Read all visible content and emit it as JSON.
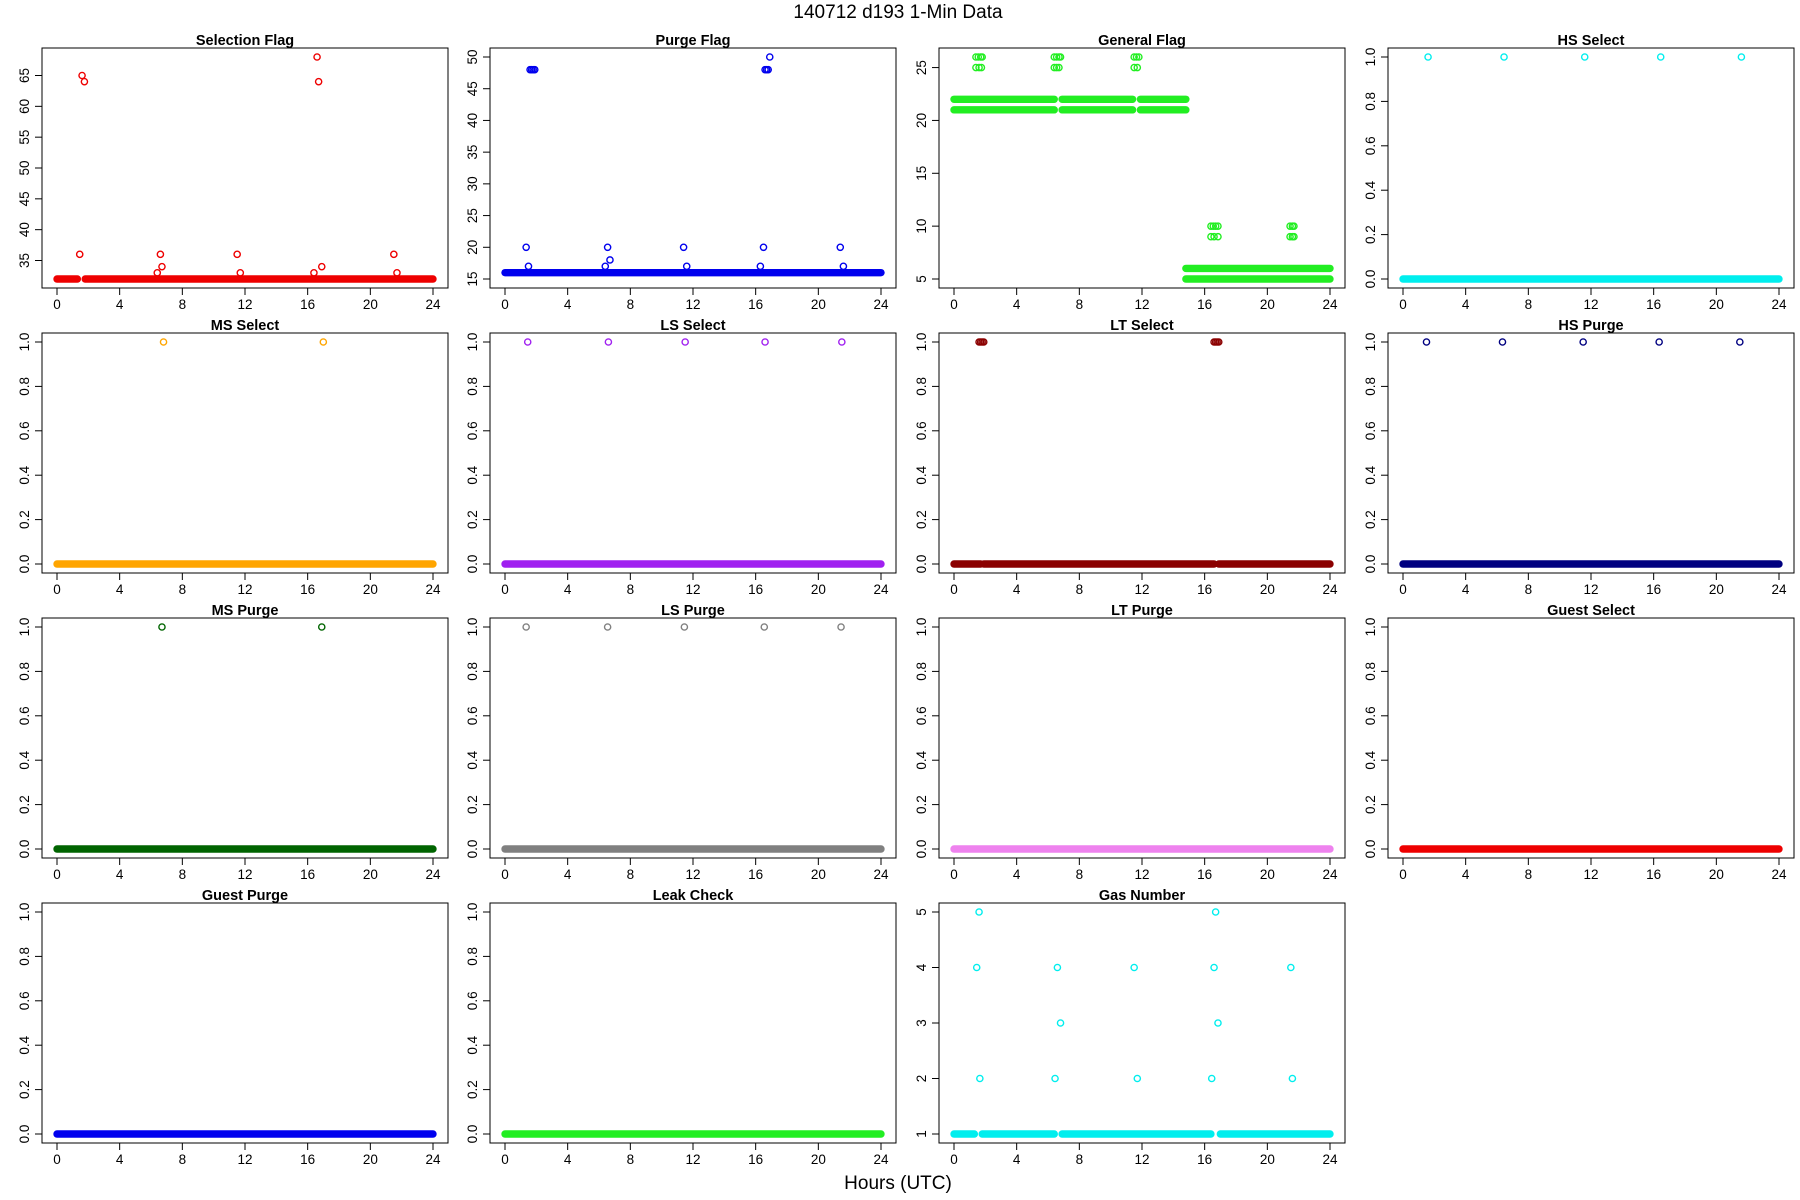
{
  "figure": {
    "title": "140712   d193   1-Min Data",
    "xlabel": "Hours (UTC)"
  },
  "chart_data": [
    {
      "type": "scatter",
      "title": "Selection Flag",
      "color": "#ee0000",
      "xlim": [
        0,
        24
      ],
      "ylim": [
        32,
        68
      ],
      "xticks": [
        0,
        4,
        8,
        12,
        16,
        20,
        24
      ],
      "yticks": [
        35,
        40,
        45,
        50,
        55,
        60,
        65
      ],
      "base_y": 32,
      "base_breaks": [
        [
          0,
          1.3
        ],
        [
          1.8,
          24
        ]
      ],
      "points": [
        [
          1.45,
          36
        ],
        [
          1.6,
          65
        ],
        [
          1.75,
          64
        ],
        [
          6.4,
          33
        ],
        [
          6.6,
          36
        ],
        [
          6.7,
          34
        ],
        [
          11.5,
          36
        ],
        [
          11.7,
          33
        ],
        [
          16.4,
          33
        ],
        [
          16.6,
          68
        ],
        [
          16.7,
          64
        ],
        [
          16.9,
          34
        ],
        [
          21.5,
          36
        ],
        [
          21.7,
          33
        ]
      ]
    },
    {
      "type": "scatter",
      "title": "Purge Flag",
      "color": "#0000ee",
      "xlim": [
        0,
        24
      ],
      "ylim": [
        15,
        50
      ],
      "xticks": [
        0,
        4,
        8,
        12,
        16,
        20,
        24
      ],
      "yticks": [
        15,
        20,
        25,
        30,
        35,
        40,
        45,
        50
      ],
      "base_y": 16,
      "base_breaks": [
        [
          0,
          24
        ]
      ],
      "points": [
        [
          1.35,
          20
        ],
        [
          1.5,
          17
        ],
        [
          1.6,
          48
        ],
        [
          1.7,
          48
        ],
        [
          1.8,
          48
        ],
        [
          1.9,
          48
        ],
        [
          6.4,
          17
        ],
        [
          6.55,
          20
        ],
        [
          6.7,
          18
        ],
        [
          11.4,
          20
        ],
        [
          11.6,
          17
        ],
        [
          16.3,
          17
        ],
        [
          16.5,
          20
        ],
        [
          16.6,
          48
        ],
        [
          16.7,
          48
        ],
        [
          16.8,
          48
        ],
        [
          16.9,
          50
        ],
        [
          21.4,
          20
        ],
        [
          21.6,
          17
        ]
      ]
    },
    {
      "type": "scatter",
      "title": "General Flag",
      "color": "#22ee22",
      "xlim": [
        0,
        24
      ],
      "ylim": [
        5,
        26
      ],
      "xticks": [
        0,
        4,
        8,
        12,
        16,
        20,
        24
      ],
      "yticks": [
        5,
        10,
        15,
        20,
        25
      ],
      "base_y": 22,
      "base_breaks": [
        [
          0,
          6.4
        ],
        [
          6.9,
          11.4
        ],
        [
          11.9,
          14.8
        ]
      ],
      "extra_bands": [
        {
          "y": 21,
          "breaks": [
            [
              0,
              6.4
            ],
            [
              6.9,
              11.4
            ],
            [
              11.9,
              14.8
            ]
          ]
        },
        {
          "y": 6,
          "breaks": [
            [
              14.8,
              24
            ]
          ]
        },
        {
          "y": 5,
          "breaks": [
            [
              14.8,
              24
            ]
          ]
        }
      ],
      "points": [
        [
          1.4,
          26
        ],
        [
          1.55,
          26
        ],
        [
          1.7,
          26
        ],
        [
          1.8,
          26
        ],
        [
          1.4,
          25
        ],
        [
          1.6,
          25
        ],
        [
          1.75,
          25
        ],
        [
          6.4,
          26
        ],
        [
          6.55,
          26
        ],
        [
          6.7,
          26
        ],
        [
          6.8,
          26
        ],
        [
          6.4,
          25
        ],
        [
          6.55,
          25
        ],
        [
          6.7,
          25
        ],
        [
          11.5,
          26
        ],
        [
          11.65,
          26
        ],
        [
          11.8,
          26
        ],
        [
          11.5,
          25
        ],
        [
          11.7,
          25
        ],
        [
          16.4,
          10
        ],
        [
          16.55,
          10
        ],
        [
          16.7,
          10
        ],
        [
          16.85,
          10
        ],
        [
          16.4,
          9
        ],
        [
          16.6,
          9
        ],
        [
          16.85,
          9
        ],
        [
          21.45,
          10
        ],
        [
          21.6,
          10
        ],
        [
          21.7,
          10
        ],
        [
          21.45,
          9
        ],
        [
          21.6,
          9
        ],
        [
          21.7,
          9
        ]
      ]
    },
    {
      "type": "scatter",
      "title": "HS Select",
      "color": "#00eeee",
      "xlim": [
        0,
        24
      ],
      "ylim": [
        0,
        1
      ],
      "xticks": [
        0,
        4,
        8,
        12,
        16,
        20,
        24
      ],
      "yticks": [
        0.0,
        0.2,
        0.4,
        0.6,
        0.8,
        1.0
      ],
      "base_y": 0,
      "base_breaks": [
        [
          0,
          24
        ]
      ],
      "points": [
        [
          1.6,
          1
        ],
        [
          6.45,
          1
        ],
        [
          11.6,
          1
        ],
        [
          16.45,
          1
        ],
        [
          21.6,
          1
        ]
      ]
    },
    {
      "type": "scatter",
      "title": "MS Select",
      "color": "#ffa500",
      "xlim": [
        0,
        24
      ],
      "ylim": [
        0,
        1
      ],
      "xticks": [
        0,
        4,
        8,
        12,
        16,
        20,
        24
      ],
      "yticks": [
        0.0,
        0.2,
        0.4,
        0.6,
        0.8,
        1.0
      ],
      "base_y": 0,
      "base_breaks": [
        [
          0,
          24
        ]
      ],
      "points": [
        [
          6.8,
          1
        ],
        [
          17.0,
          1
        ]
      ]
    },
    {
      "type": "scatter",
      "title": "LS Select",
      "color": "#a020f0",
      "xlim": [
        0,
        24
      ],
      "ylim": [
        0,
        1
      ],
      "xticks": [
        0,
        4,
        8,
        12,
        16,
        20,
        24
      ],
      "yticks": [
        0.0,
        0.2,
        0.4,
        0.6,
        0.8,
        1.0
      ],
      "base_y": 0,
      "base_breaks": [
        [
          0,
          24
        ]
      ],
      "points": [
        [
          1.45,
          1
        ],
        [
          6.6,
          1
        ],
        [
          11.5,
          1
        ],
        [
          16.6,
          1
        ],
        [
          21.5,
          1
        ]
      ]
    },
    {
      "type": "scatter",
      "title": "LT Select",
      "color": "#8b0000",
      "xlim": [
        0,
        24
      ],
      "ylim": [
        0,
        1
      ],
      "xticks": [
        0,
        4,
        8,
        12,
        16,
        20,
        24
      ],
      "yticks": [
        0.0,
        0.2,
        0.4,
        0.6,
        0.8,
        1.0
      ],
      "base_y": 0,
      "base_breaks": [
        [
          0,
          1.7
        ],
        [
          1.9,
          16.6
        ],
        [
          16.9,
          24
        ]
      ],
      "points": [
        [
          1.6,
          1
        ],
        [
          1.7,
          1
        ],
        [
          1.8,
          1
        ],
        [
          1.9,
          1
        ],
        [
          16.6,
          1
        ],
        [
          16.7,
          1
        ],
        [
          16.8,
          1
        ],
        [
          16.9,
          1
        ]
      ]
    },
    {
      "type": "scatter",
      "title": "HS Purge",
      "color": "#000080",
      "xlim": [
        0,
        24
      ],
      "ylim": [
        0,
        1
      ],
      "xticks": [
        0,
        4,
        8,
        12,
        16,
        20,
        24
      ],
      "yticks": [
        0.0,
        0.2,
        0.4,
        0.6,
        0.8,
        1.0
      ],
      "base_y": 0,
      "base_breaks": [
        [
          0,
          24
        ]
      ],
      "points": [
        [
          1.5,
          1
        ],
        [
          6.35,
          1
        ],
        [
          11.5,
          1
        ],
        [
          16.35,
          1
        ],
        [
          21.5,
          1
        ]
      ]
    },
    {
      "type": "scatter",
      "title": "MS Purge",
      "color": "#006400",
      "xlim": [
        0,
        24
      ],
      "ylim": [
        0,
        1
      ],
      "xticks": [
        0,
        4,
        8,
        12,
        16,
        20,
        24
      ],
      "yticks": [
        0.0,
        0.2,
        0.4,
        0.6,
        0.8,
        1.0
      ],
      "base_y": 0,
      "base_breaks": [
        [
          0,
          24
        ]
      ],
      "points": [
        [
          6.7,
          1
        ],
        [
          16.9,
          1
        ]
      ]
    },
    {
      "type": "scatter",
      "title": "LS Purge",
      "color": "#808080",
      "xlim": [
        0,
        24
      ],
      "ylim": [
        0,
        1
      ],
      "xticks": [
        0,
        4,
        8,
        12,
        16,
        20,
        24
      ],
      "yticks": [
        0.0,
        0.2,
        0.4,
        0.6,
        0.8,
        1.0
      ],
      "base_y": 0,
      "base_breaks": [
        [
          0,
          24
        ]
      ],
      "points": [
        [
          1.35,
          1
        ],
        [
          6.55,
          1
        ],
        [
          11.45,
          1
        ],
        [
          16.55,
          1
        ],
        [
          21.45,
          1
        ]
      ]
    },
    {
      "type": "scatter",
      "title": "LT Purge",
      "color": "#ee82ee",
      "xlim": [
        0,
        24
      ],
      "ylim": [
        0,
        1
      ],
      "xticks": [
        0,
        4,
        8,
        12,
        16,
        20,
        24
      ],
      "yticks": [
        0.0,
        0.2,
        0.4,
        0.6,
        0.8,
        1.0
      ],
      "base_y": 0,
      "base_breaks": [
        [
          0,
          24
        ]
      ],
      "points": []
    },
    {
      "type": "scatter",
      "title": "Guest Select",
      "color": "#ee0000",
      "xlim": [
        0,
        24
      ],
      "ylim": [
        0,
        1
      ],
      "xticks": [
        0,
        4,
        8,
        12,
        16,
        20,
        24
      ],
      "yticks": [
        0.0,
        0.2,
        0.4,
        0.6,
        0.8,
        1.0
      ],
      "base_y": 0,
      "base_breaks": [
        [
          0,
          24
        ]
      ],
      "points": []
    },
    {
      "type": "scatter",
      "title": "Guest Purge",
      "color": "#0000ee",
      "xlim": [
        0,
        24
      ],
      "ylim": [
        0,
        1
      ],
      "xticks": [
        0,
        4,
        8,
        12,
        16,
        20,
        24
      ],
      "yticks": [
        0.0,
        0.2,
        0.4,
        0.6,
        0.8,
        1.0
      ],
      "base_y": 0,
      "base_breaks": [
        [
          0,
          24
        ]
      ],
      "points": []
    },
    {
      "type": "scatter",
      "title": "Leak Check",
      "color": "#22ee22",
      "xlim": [
        0,
        24
      ],
      "ylim": [
        0,
        1
      ],
      "xticks": [
        0,
        4,
        8,
        12,
        16,
        20,
        24
      ],
      "yticks": [
        0.0,
        0.2,
        0.4,
        0.6,
        0.8,
        1.0
      ],
      "base_y": 0,
      "base_breaks": [
        [
          0,
          24
        ]
      ],
      "points": []
    },
    {
      "type": "scatter",
      "title": "Gas Number",
      "color": "#00eeee",
      "xlim": [
        0,
        24
      ],
      "ylim": [
        1,
        5
      ],
      "xticks": [
        0,
        4,
        8,
        12,
        16,
        20,
        24
      ],
      "yticks": [
        1,
        2,
        3,
        4,
        5
      ],
      "base_y": 1,
      "base_breaks": [
        [
          0,
          1.3
        ],
        [
          1.8,
          6.4
        ],
        [
          6.9,
          16.4
        ],
        [
          17.0,
          24
        ]
      ],
      "points": [
        [
          1.45,
          4
        ],
        [
          1.6,
          5
        ],
        [
          1.65,
          2
        ],
        [
          6.45,
          2
        ],
        [
          6.6,
          4
        ],
        [
          6.8,
          3
        ],
        [
          11.5,
          4
        ],
        [
          11.7,
          2
        ],
        [
          16.45,
          2
        ],
        [
          16.6,
          4
        ],
        [
          16.7,
          5
        ],
        [
          16.85,
          3
        ],
        [
          21.5,
          4
        ],
        [
          21.6,
          2
        ]
      ]
    }
  ]
}
